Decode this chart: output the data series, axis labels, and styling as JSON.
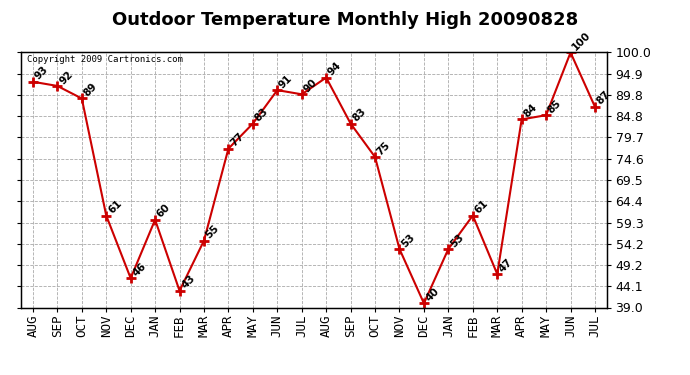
{
  "title": "Outdoor Temperature Monthly High 20090828",
  "copyright": "Copyright 2009 Cartronics.com",
  "months": [
    "AUG",
    "SEP",
    "OCT",
    "NOV",
    "DEC",
    "JAN",
    "FEB",
    "MAR",
    "APR",
    "MAY",
    "JUN",
    "JUL",
    "AUG",
    "SEP",
    "OCT",
    "NOV",
    "DEC",
    "JAN",
    "FEB",
    "MAR",
    "APR",
    "MAY",
    "JUN",
    "JUL"
  ],
  "values": [
    93,
    92,
    89,
    61,
    46,
    60,
    43,
    55,
    77,
    83,
    91,
    90,
    94,
    83,
    75,
    53,
    40,
    53,
    61,
    47,
    84,
    85,
    100,
    87
  ],
  "ylim": [
    39.0,
    100.0
  ],
  "yticks": [
    39.0,
    44.1,
    49.2,
    54.2,
    59.3,
    64.4,
    69.5,
    74.6,
    79.7,
    84.8,
    89.8,
    94.9,
    100.0
  ],
  "line_color": "#cc0000",
  "marker_color": "#cc0000",
  "background_color": "#ffffff",
  "grid_color": "#aaaaaa",
  "title_fontsize": 13,
  "tick_fontsize": 9,
  "annot_fontsize": 7.5
}
